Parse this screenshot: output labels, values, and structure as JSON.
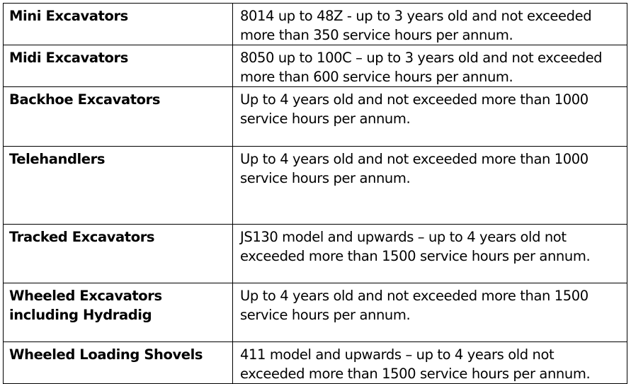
{
  "rows": [
    {
      "category": "Mini Excavators",
      "description": "8014 up to 48Z - up to 3 years old and not exceeded more than 350 service hours per annum."
    },
    {
      "category": "Midi Excavators",
      "description": "8050 up to 100C – up to 3 years old and not exceeded more than 600 service hours per annum."
    },
    {
      "category": "Backhoe Excavators",
      "description": "Up to 4 years old and not exceeded more than 1000 service hours per annum."
    },
    {
      "category": "Telehandlers",
      "description": "Up to 4 years old and not exceeded more than 1000 service hours per annum."
    },
    {
      "category": "Tracked Excavators",
      "description": "JS130 model and upwards – up to 4 years old not exceeded more than 1500 service hours per annum."
    },
    {
      "category": "Wheeled Excavators including Hydradig",
      "description": "Up to 4 years old and not exceeded more than 1500 service hours per annum."
    },
    {
      "category": "Wheeled Loading Shovels",
      "description": "411 model and upwards – up to 4 years old not exceeded more than 1500 service hours per annum."
    }
  ]
}
